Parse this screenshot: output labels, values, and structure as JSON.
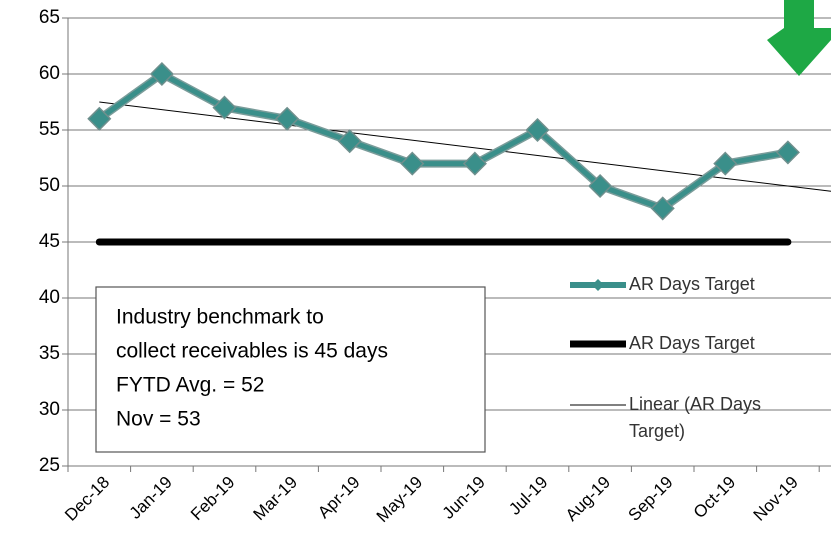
{
  "chart_data": {
    "type": "line",
    "categories": [
      "Dec-18",
      "Jan-19",
      "Feb-19",
      "Mar-19",
      "Apr-19",
      "May-19",
      "Jun-19",
      "Jul-19",
      "Aug-19",
      "Sep-19",
      "Oct-19",
      "Nov-19"
    ],
    "series": [
      {
        "name": "AR Days Target",
        "color": "#3a8f8a",
        "values": [
          56,
          60,
          57,
          56,
          54,
          52,
          52,
          55,
          50,
          48,
          52,
          53
        ]
      },
      {
        "name": "AR Days Target",
        "color": "#000000",
        "values": [
          45,
          45,
          45,
          45,
          45,
          45,
          45,
          45,
          45,
          45,
          45,
          45
        ]
      }
    ],
    "trendline": {
      "name": "Linear (AR Days Target)",
      "type": "linear",
      "of_series": 0,
      "color": "#000000"
    },
    "ylim": [
      25,
      65
    ],
    "yticks": [
      25,
      30,
      35,
      40,
      45,
      50,
      55,
      60,
      65
    ],
    "grid": true,
    "legend": "right",
    "annotations": [
      "Industry benchmark to",
      "collect receivables is 45 days",
      "FYTD Avg. = 52",
      "Nov = 53"
    ]
  }
}
